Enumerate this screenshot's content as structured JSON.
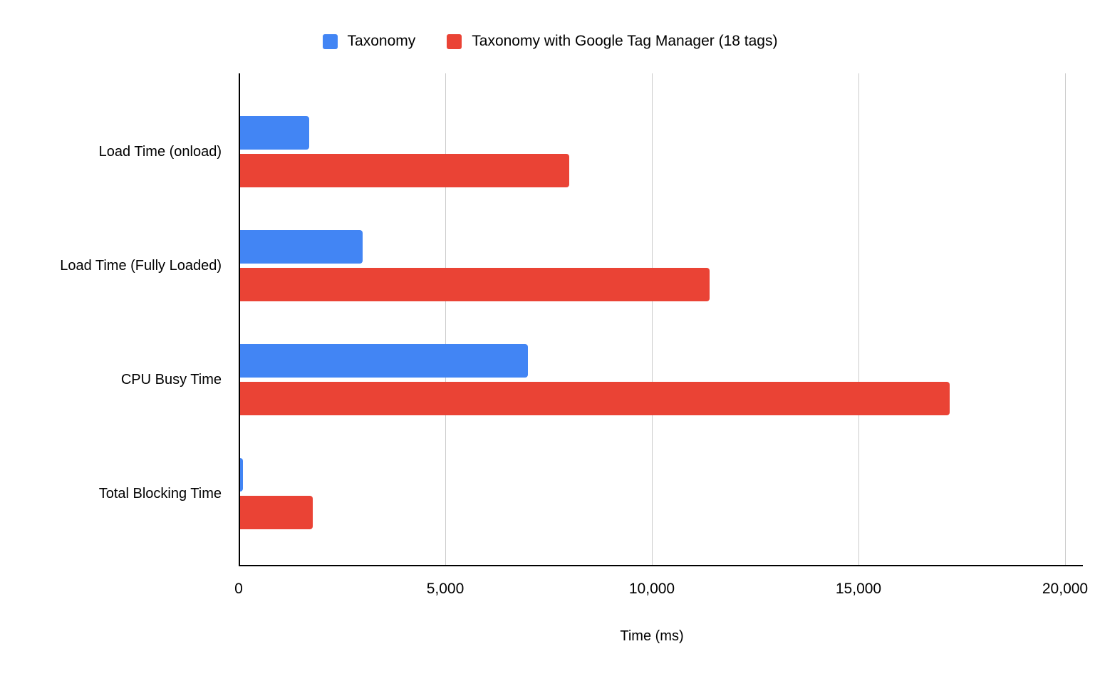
{
  "chart_data": {
    "type": "bar",
    "orientation": "horizontal",
    "title": "",
    "xlabel": "Time (ms)",
    "ylabel": "",
    "xlim": [
      0,
      20000
    ],
    "grid": true,
    "legend_position": "top",
    "categories": [
      "Load Time (onload)",
      "Load Time (Fully Loaded)",
      "CPU Busy Time",
      "Total Blocking Time"
    ],
    "series": [
      {
        "name": "Taxonomy",
        "color": "#4285F4",
        "values": [
          1700,
          3000,
          7000,
          100
        ]
      },
      {
        "name": "Taxonomy with Google Tag Manager (18 tags)",
        "color": "#EA4335",
        "values": [
          8000,
          11400,
          17200,
          1800
        ]
      }
    ],
    "x_ticks": [
      0,
      5000,
      10000,
      15000,
      20000
    ],
    "x_tick_labels": [
      "0",
      "5,000",
      "10,000",
      "15,000",
      "20,000"
    ]
  },
  "colors": {
    "axis": "#000000",
    "gridline": "#cccccc",
    "background": "#ffffff"
  }
}
